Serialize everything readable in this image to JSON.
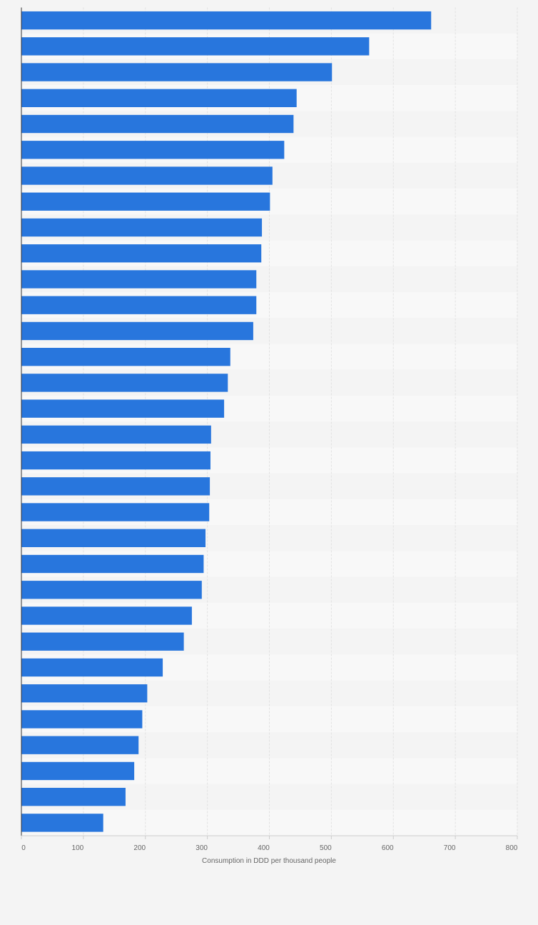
{
  "chart_data": {
    "type": "bar",
    "orientation": "horizontal",
    "title": "",
    "xlabel": "Consumption in DDD per thousand people",
    "ylabel": "",
    "xlim": [
      0,
      800
    ],
    "x_ticks": [
      0,
      100,
      200,
      300,
      400,
      500,
      600,
      700,
      800
    ],
    "x_tick_labels": [
      "0",
      "100",
      "200",
      "300",
      "400",
      "500",
      "600",
      "700",
      "800"
    ],
    "grid": true,
    "legend": "none",
    "bar_color": "#2876dd",
    "categories": [
      "",
      "",
      "",
      "",
      "",
      "",
      "",
      "",
      "",
      "",
      "",
      "",
      "",
      "",
      "",
      "",
      "",
      "",
      "",
      "",
      "",
      "",
      "",
      "",
      "",
      "",
      "",
      "",
      "",
      "",
      "",
      ""
    ],
    "values": [
      661,
      561,
      501,
      444,
      439,
      424,
      405,
      401,
      388,
      387,
      379,
      379,
      374,
      337,
      333,
      327,
      306,
      305,
      304,
      303,
      297,
      294,
      291,
      275,
      262,
      228,
      203,
      195,
      189,
      182,
      168,
      132
    ]
  }
}
